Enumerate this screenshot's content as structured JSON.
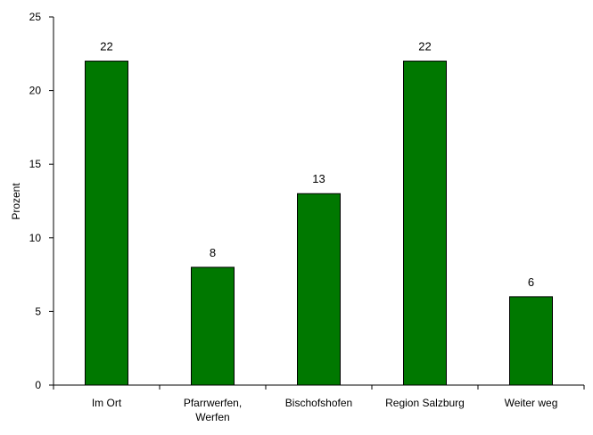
{
  "chart_data": {
    "type": "bar",
    "categories": [
      [
        "Im Ort"
      ],
      [
        "Pfarrwerfen,",
        "Werfen"
      ],
      [
        "Bischofshofen"
      ],
      [
        "Region Salzburg"
      ],
      [
        "Weiter weg"
      ]
    ],
    "values": [
      22,
      8,
      13,
      22,
      6
    ],
    "data_labels": [
      "22",
      "8",
      "13",
      "22",
      "6"
    ],
    "ylabel": "Prozent",
    "xlabel": "",
    "ylim": [
      0,
      25
    ],
    "yticks": [
      0,
      5,
      10,
      15,
      20,
      25
    ],
    "grid": false,
    "legend": "none",
    "bar_color": "#007800"
  }
}
